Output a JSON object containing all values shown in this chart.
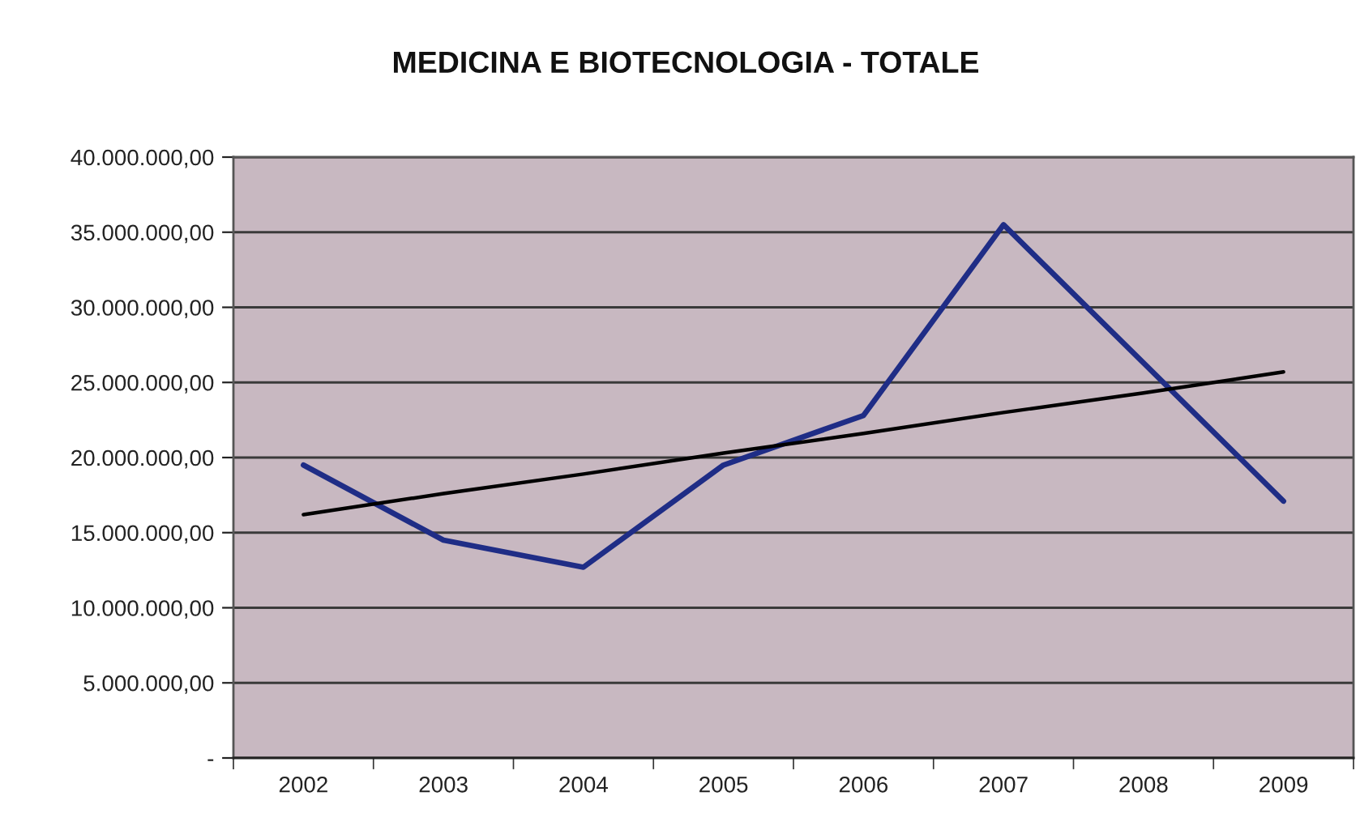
{
  "chart_data": {
    "type": "line",
    "title": "MEDICINA E BIOTECNOLOGIA - TOTALE",
    "categories": [
      "2002",
      "2003",
      "2004",
      "2005",
      "2006",
      "2007",
      "2008",
      "2009"
    ],
    "series": [
      {
        "color": "#1f2d86",
        "values": [
          19500000,
          14500000,
          12700000,
          19500000,
          22800000,
          35500000,
          26300000,
          17100000
        ]
      },
      {
        "type": "line",
        "color": "#000000",
        "values": [
          16200000,
          17600000,
          18900000,
          20300000,
          21600000,
          23000000,
          24300000,
          25700000
        ]
      }
    ],
    "ylim": [
      0,
      40000000
    ],
    "yticks": [
      {
        "value": 0,
        "label": "-"
      },
      {
        "value": 5000000,
        "label": "5.000.000,00"
      },
      {
        "value": 10000000,
        "label": "10.000.000,00"
      },
      {
        "value": 15000000,
        "label": "15.000.000,00"
      },
      {
        "value": 20000000,
        "label": "20.000.000,00"
      },
      {
        "value": 25000000,
        "label": "25.000.000,00"
      },
      {
        "value": 30000000,
        "label": "30.000.000,00"
      },
      {
        "value": 35000000,
        "label": "35.000.000,00"
      },
      {
        "value": 40000000,
        "label": "40.000.000,00"
      }
    ],
    "grid": "y",
    "legend": false,
    "marker": "none",
    "line_style": "solid"
  }
}
